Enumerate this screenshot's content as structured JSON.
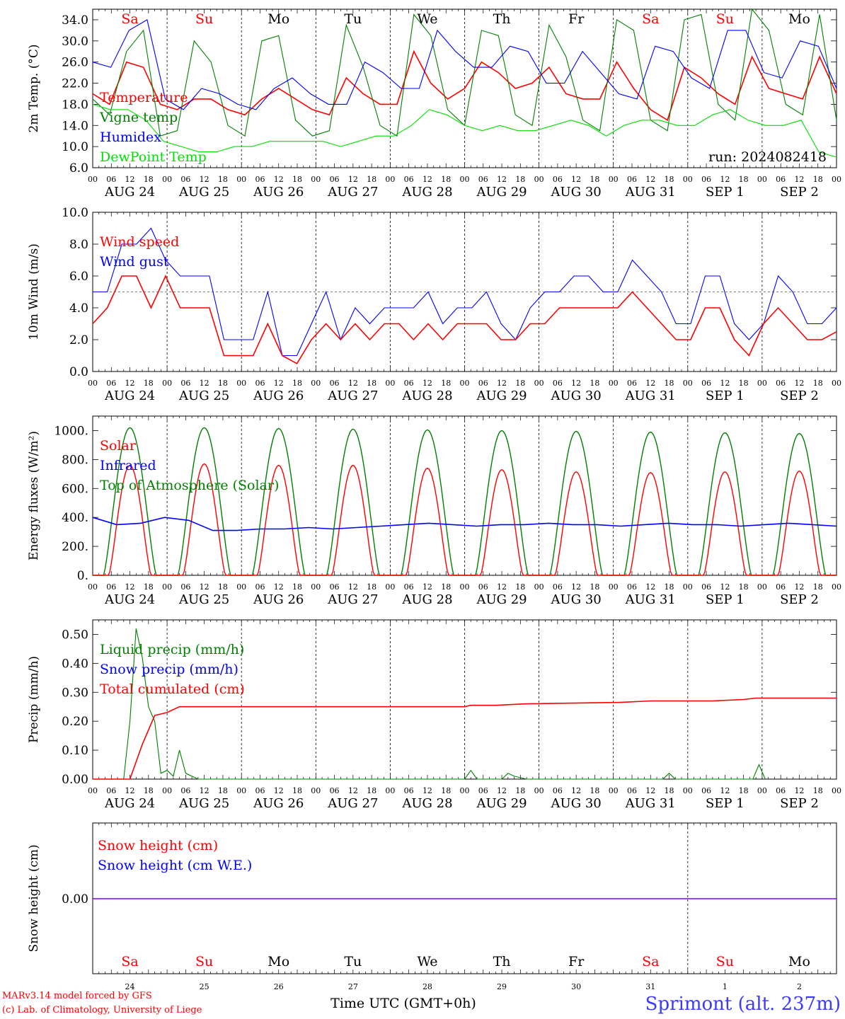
{
  "run_label": "run: 2024082418",
  "credits": {
    "line1": "MARv3.14 model forced by GFS",
    "line2": "(c) Lab. of Climatology, University of Liege"
  },
  "station": "Sprimont (alt. 237m)",
  "time_axis_label": "Time UTC (GMT+0h)",
  "colors": {
    "red": "#ff0000",
    "green": "#008000",
    "blue": "#0000ff",
    "lightgreen": "#00e000",
    "purple": "#8000ff"
  },
  "chart_data": [
    {
      "type": "line",
      "ylabel": "2m Temp. (°C)",
      "ylim": [
        6,
        36
      ],
      "yticks": [
        "6.0",
        "10.0",
        "14.0",
        "18.0",
        "22.0",
        "26.0",
        "30.0",
        "34.0"
      ],
      "hours_per_point": 6,
      "day_names": [
        "Sa",
        "Su",
        "Mo",
        "Tu",
        "We",
        "Th",
        "Fr",
        "Sa",
        "Su",
        "Mo"
      ],
      "day_name_colors": [
        "red",
        "red",
        "black",
        "black",
        "black",
        "black",
        "black",
        "red",
        "red",
        "black"
      ],
      "date_labels": [
        "AUG 24",
        "AUG 25",
        "AUG 26",
        "AUG 27",
        "AUG 28",
        "AUG 29",
        "AUG 30",
        "AUG 31",
        "SEP  1",
        "SEP  2"
      ],
      "hour_labels": [
        "00",
        "06",
        "12",
        "18"
      ],
      "series": [
        {
          "name": "Temperature",
          "color": "red",
          "values": [
            20,
            18,
            26,
            25,
            18,
            17,
            19,
            19,
            17,
            16,
            19,
            21,
            19,
            17,
            16,
            23,
            20,
            18,
            18,
            28,
            22,
            19,
            21,
            26,
            24,
            21,
            22,
            25,
            20,
            19,
            19,
            26,
            21,
            17,
            15,
            25,
            23,
            20,
            18,
            27,
            21,
            20,
            19,
            27,
            20
          ]
        },
        {
          "name": "Vigne temp",
          "color": "green",
          "values": [
            19,
            16,
            28,
            32,
            12,
            13,
            30,
            26,
            14,
            12,
            30,
            31,
            15,
            12,
            13,
            33,
            25,
            14,
            12,
            35,
            31,
            17,
            14,
            32,
            31,
            16,
            14,
            33,
            27,
            15,
            13,
            34,
            32,
            15,
            13,
            34,
            35,
            18,
            15,
            36,
            32,
            18,
            16,
            35,
            15
          ]
        },
        {
          "name": "Humidex",
          "color": "blue",
          "values": [
            26,
            25,
            32,
            34,
            19,
            17,
            21,
            20,
            18,
            17,
            21,
            23,
            20,
            18,
            18,
            26,
            24,
            21,
            21,
            32,
            28,
            25,
            25,
            29,
            28,
            22,
            22,
            28,
            24,
            20,
            19,
            29,
            28,
            23,
            21,
            32,
            32,
            24,
            23,
            30,
            29,
            21
          ]
        },
        {
          "name": "DewPoint Temp",
          "color": "lightgreen",
          "values": [
            18,
            17,
            17,
            15,
            11,
            10,
            9,
            9,
            10,
            10,
            11,
            11,
            11,
            11,
            10,
            11,
            12,
            12,
            14,
            17,
            16,
            14,
            13,
            14,
            13,
            13,
            14,
            15,
            14,
            12,
            14,
            15,
            15,
            14,
            14,
            16,
            17,
            15,
            14,
            14,
            15,
            9,
            8
          ]
        }
      ]
    },
    {
      "type": "line",
      "ylabel": "10m Wind (m/s)",
      "ylim": [
        0,
        10
      ],
      "yticks": [
        "0.0",
        "2.0",
        "4.0",
        "6.0",
        "8.0",
        "10.0"
      ],
      "reference_line": 5,
      "series": [
        {
          "name": "Wind speed",
          "color": "red",
          "values": [
            3,
            4,
            6,
            6,
            4,
            6,
            4,
            4,
            4,
            1,
            1,
            1,
            3,
            1,
            0.5,
            2,
            3,
            2,
            3,
            2,
            3,
            3,
            2,
            3,
            2,
            3,
            3,
            3,
            2,
            2,
            3,
            3,
            4,
            4,
            4,
            4,
            4,
            5,
            4,
            3,
            2,
            2,
            4,
            4,
            2,
            1,
            3,
            4,
            3,
            2,
            2,
            2.5
          ]
        },
        {
          "name": "Wind gust",
          "color": "blue",
          "values": [
            5,
            5,
            8,
            8,
            9,
            7,
            6,
            6,
            6,
            2,
            2,
            2,
            5,
            1,
            1,
            3,
            5,
            2,
            4,
            3,
            4,
            4,
            4,
            5,
            3,
            4,
            4,
            5,
            3,
            2,
            4,
            5,
            5,
            6,
            6,
            5,
            5,
            7,
            6,
            5,
            3,
            3,
            6,
            6,
            3,
            2,
            3,
            6,
            5,
            3,
            3,
            4
          ]
        }
      ]
    },
    {
      "type": "line",
      "ylabel": "Energy fluxes (W/m²)",
      "ylim": [
        0,
        1100
      ],
      "yticks": [
        "0.",
        "200.",
        "400.",
        "600.",
        "800.",
        "1000."
      ],
      "series": [
        {
          "name": "Solar",
          "color": "red",
          "daily_peak": [
            760,
            770,
            760,
            760,
            740,
            730,
            715,
            710,
            715,
            720
          ]
        },
        {
          "name": "Infrared",
          "color": "blue",
          "values": [
            400,
            350,
            360,
            400,
            380,
            310,
            310,
            320,
            320,
            330,
            320,
            330,
            340,
            350,
            360,
            350,
            340,
            350,
            350,
            360,
            350,
            350,
            340,
            350,
            360,
            350,
            350,
            340,
            350,
            360,
            350,
            340
          ]
        },
        {
          "name": "Top of Atmosphere (Solar)",
          "color": "green",
          "daily_peak": [
            1020,
            1020,
            1015,
            1010,
            1005,
            1000,
            995,
            990,
            985,
            980
          ]
        }
      ]
    },
    {
      "type": "line",
      "ylabel": "Precip (mm/h)",
      "ylim": [
        0,
        0.55
      ],
      "yticks": [
        "0.00",
        "0.10",
        "0.20",
        "0.30",
        "0.40",
        "0.50"
      ],
      "series": [
        {
          "name": "Liquid precip (mm/h)",
          "color": "green",
          "points": [
            [
              10,
              0
            ],
            [
              12,
              0.2
            ],
            [
              14,
              0.52
            ],
            [
              16,
              0.42
            ],
            [
              18,
              0.25
            ],
            [
              20,
              0.2
            ],
            [
              22,
              0.02
            ],
            [
              24,
              0.03
            ],
            [
              26,
              0.01
            ],
            [
              28,
              0.1
            ],
            [
              30,
              0.02
            ],
            [
              34,
              0
            ],
            [
              120,
              0
            ],
            [
              122,
              0.03
            ],
            [
              124,
              0
            ],
            [
              132,
              0
            ],
            [
              134,
              0.02
            ],
            [
              136,
              0.01
            ],
            [
              140,
              0
            ],
            [
              184,
              0
            ],
            [
              186,
              0.02
            ],
            [
              188,
              0
            ],
            [
              213,
              0
            ],
            [
              215,
              0.05
            ],
            [
              217,
              0
            ]
          ]
        },
        {
          "name": "Snow precip (mm/h)",
          "color": "blue",
          "points": []
        },
        {
          "name": "Total cumulated (cm)",
          "color": "red",
          "points": [
            [
              0,
              0
            ],
            [
              12,
              0
            ],
            [
              16,
              0.12
            ],
            [
              20,
              0.22
            ],
            [
              24,
              0.23
            ],
            [
              28,
              0.25
            ],
            [
              120,
              0.25
            ],
            [
              122,
              0.255
            ],
            [
              130,
              0.255
            ],
            [
              140,
              0.26
            ],
            [
              170,
              0.265
            ],
            [
              180,
              0.27
            ],
            [
              200,
              0.27
            ],
            [
              210,
              0.275
            ],
            [
              214,
              0.28
            ],
            [
              240,
              0.28
            ]
          ]
        }
      ]
    },
    {
      "type": "line",
      "ylabel": "Snow height (cm)",
      "ytick": "0.00",
      "series": [
        {
          "name": "Snow height (cm)",
          "color": "red",
          "value": 0
        },
        {
          "name": "Snow height (cm W.E.)",
          "color": "blue",
          "value": 0
        }
      ],
      "bottom_days": [
        "24",
        "25",
        "26",
        "27",
        "28",
        "29",
        "30",
        "31",
        "1",
        "2"
      ]
    }
  ]
}
